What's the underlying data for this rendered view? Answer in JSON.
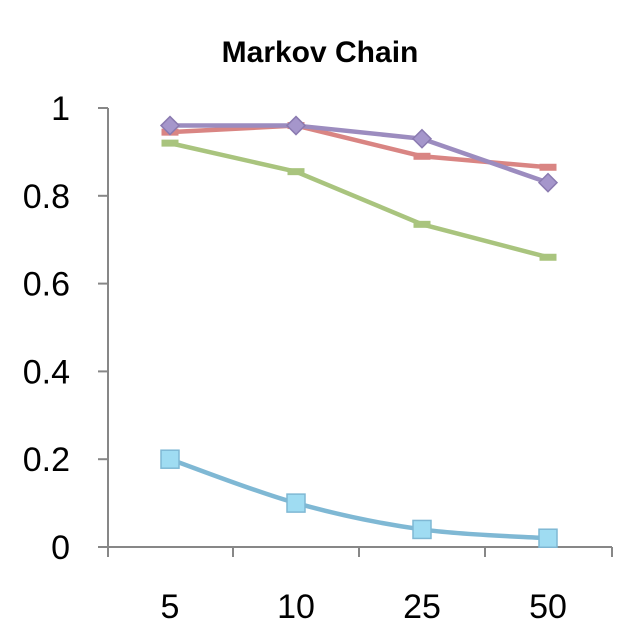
{
  "chart_data": {
    "type": "line",
    "title": "Markov Chain",
    "categories": [
      "5",
      "10",
      "25",
      "50"
    ],
    "y_tick_labels": [
      "0",
      "0.2",
      "0.4",
      "0.6",
      "0.8",
      "1"
    ],
    "ylim": [
      0,
      1
    ],
    "grid": false,
    "legend": "none",
    "series": [
      {
        "values": [
          0.2,
          0.1,
          0.04,
          0.02
        ],
        "color": "#7fb8d4",
        "marker": "square",
        "marker_color": "#9fdcf2"
      },
      {
        "values": [
          0.945,
          0.96,
          0.89,
          0.865
        ],
        "color": "#d98583",
        "marker": "dash",
        "marker_color": "#d98583"
      },
      {
        "values": [
          0.92,
          0.855,
          0.735,
          0.66
        ],
        "color": "#a9c47e",
        "marker": "dash",
        "marker_color": "#a9c47e"
      },
      {
        "values": [
          0.96,
          0.96,
          0.93,
          0.83
        ],
        "color": "#9c8cbf",
        "marker": "diamond",
        "marker_color": "#a596cb"
      }
    ]
  }
}
